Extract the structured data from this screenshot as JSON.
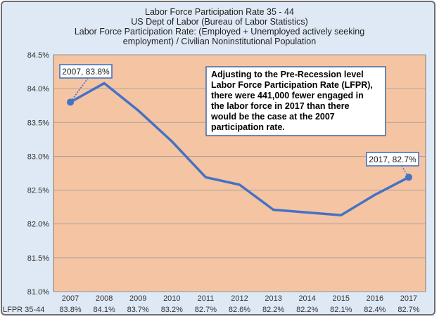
{
  "chart_data": {
    "type": "line",
    "title_lines": [
      "Labor Force Participation  Rate 35 - 44",
      "US Dept of Labor (Bureau of Labor Statistics)",
      "Labor Force Participation Rate: (Employed  + Unemployed  actively seeking",
      "employment)  / Civilian  Noninstitutional  Population"
    ],
    "categories": [
      "2007",
      "2008",
      "2009",
      "2010",
      "2011",
      "2012",
      "2013",
      "2014",
      "2015",
      "2016",
      "2017"
    ],
    "values": [
      83.8,
      84.08,
      83.68,
      83.22,
      82.69,
      82.58,
      82.21,
      82.17,
      82.13,
      82.43,
      82.69
    ],
    "ylim": [
      81.0,
      84.5
    ],
    "yticks": [
      81.0,
      81.5,
      82.0,
      82.5,
      83.0,
      83.5,
      84.0,
      84.5
    ],
    "ytick_labels": [
      "81.0%",
      "81.5%",
      "82.0%",
      "82.5%",
      "83.0%",
      "83.5%",
      "84.0%",
      "84.5%"
    ],
    "table": {
      "row_label": "LFPR 35-44",
      "values": [
        "83.8%",
        "84.1%",
        "83.7%",
        "83.2%",
        "82.7%",
        "82.6%",
        "82.2%",
        "82.2%",
        "82.1%",
        "82.4%",
        "82.7%"
      ]
    },
    "callouts": [
      {
        "label": "2007, 83.8%",
        "index": 0
      },
      {
        "label": "2017, 82.7%",
        "index": 10
      }
    ],
    "annotation_lines": [
      "Adjusting to the Pre-Recession level",
      "Labor Force Participation Rate (LFPR),",
      "there were 441,000 fewer engaged in",
      "the labor force in 2017 than there",
      "would be the case at the 2007",
      "participation rate."
    ],
    "colors": {
      "plot_bg": "#f5c4a3",
      "line": "#4472c4",
      "frame_bg": "#dfe9f5",
      "grid": "#9a9a9a"
    }
  }
}
